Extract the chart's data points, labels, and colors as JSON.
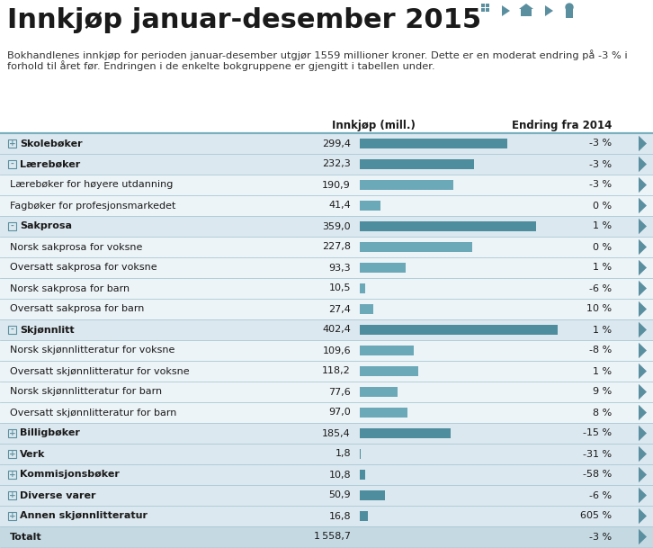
{
  "title": "Innkjøp januar-desember 2015",
  "subtitle_line1": "Bokhandlenes innkjøp for perioden januar-desember utgjør 1559 millioner kroner. Dette er en moderat endring på -3 % i",
  "subtitle_line2": "forhold til året før. Endringen i de enkelte bokgruppene er gjengitt i tabellen under.",
  "col_header_left": "Innkjøp (mill.)",
  "col_header_right": "Endring fra 2014",
  "rows": [
    {
      "label": "Skolebøker",
      "prefix": "+",
      "bold": true,
      "value": 299.4,
      "change_str": "-3 %"
    },
    {
      "label": "Lærebøker",
      "prefix": "-",
      "bold": true,
      "value": 232.3,
      "change_str": "-3 %"
    },
    {
      "label": "Lærebøker for høyere utdanning",
      "prefix": "",
      "bold": false,
      "value": 190.9,
      "change_str": "-3 %"
    },
    {
      "label": "Fagbøker for profesjonsmarkedet",
      "prefix": "",
      "bold": false,
      "value": 41.4,
      "change_str": "0 %"
    },
    {
      "label": "Sakprosa",
      "prefix": "-",
      "bold": true,
      "value": 359.0,
      "change_str": "1 %"
    },
    {
      "label": "Norsk sakprosa for voksne",
      "prefix": "",
      "bold": false,
      "value": 227.8,
      "change_str": "0 %"
    },
    {
      "label": "Oversatt sakprosa for voksne",
      "prefix": "",
      "bold": false,
      "value": 93.3,
      "change_str": "1 %"
    },
    {
      "label": "Norsk sakprosa for barn",
      "prefix": "",
      "bold": false,
      "value": 10.5,
      "change_str": "-6 %"
    },
    {
      "label": "Oversatt sakprosa for barn",
      "prefix": "",
      "bold": false,
      "value": 27.4,
      "change_str": "10 %"
    },
    {
      "label": "Skjønnlitt",
      "prefix": "-",
      "bold": true,
      "value": 402.4,
      "change_str": "1 %"
    },
    {
      "label": "Norsk skjønnlitteratur for voksne",
      "prefix": "",
      "bold": false,
      "value": 109.6,
      "change_str": "-8 %"
    },
    {
      "label": "Oversatt skjønnlitteratur for voksne",
      "prefix": "",
      "bold": false,
      "value": 118.2,
      "change_str": "1 %"
    },
    {
      "label": "Norsk skjønnlitteratur for barn",
      "prefix": "",
      "bold": false,
      "value": 77.6,
      "change_str": "9 %"
    },
    {
      "label": "Oversatt skjønnlitteratur for barn",
      "prefix": "",
      "bold": false,
      "value": 97.0,
      "change_str": "8 %"
    },
    {
      "label": "Billigbøker",
      "prefix": "+",
      "bold": true,
      "value": 185.4,
      "change_str": "-15 %"
    },
    {
      "label": "Verk",
      "prefix": "+",
      "bold": true,
      "value": 1.8,
      "change_str": "-31 %"
    },
    {
      "label": "Kommisjonsbøker",
      "prefix": "+",
      "bold": true,
      "value": 10.8,
      "change_str": "-58 %"
    },
    {
      "label": "Diverse varer",
      "prefix": "+",
      "bold": true,
      "value": 50.9,
      "change_str": "-6 %"
    },
    {
      "label": "Annen skjønnlitteratur",
      "prefix": "+",
      "bold": true,
      "value": 16.8,
      "change_str": "605 %"
    },
    {
      "label": "Totalt",
      "prefix": "",
      "bold": true,
      "value": 1558.7,
      "change_str": "-3 %"
    }
  ],
  "bg_color": "#ffffff",
  "row_bg_bold": "#dce8ef",
  "row_bg_normal": "#edf4f7",
  "row_bg_total": "#c5d9e2",
  "bar_color_bold": "#4d8d9e",
  "bar_color_normal": "#6ba8b8",
  "divider_color": "#a8c8d4",
  "header_line_color": "#7aafc0",
  "text_color": "#1a1a1a",
  "subtitle_color": "#333333",
  "title_color": "#1a1a1a",
  "icon_color": "#5a8fa0",
  "max_bar_value": 402.4,
  "title_fontsize": 22,
  "subtitle_fontsize": 8.2,
  "header_fontsize": 8.5,
  "row_fontsize": 8.0
}
